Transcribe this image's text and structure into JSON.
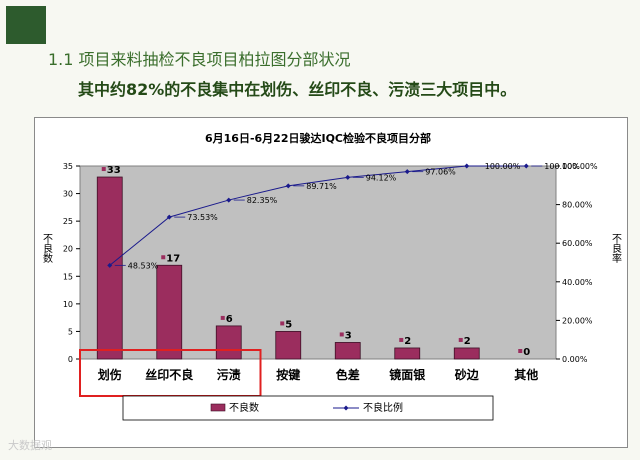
{
  "slide": {
    "heading": "1.1 项目来料抽检不良项目柏拉图分部状况",
    "subheading": "其中约82%的不良集中在划伤、丝印不良、污渍三大项目中。",
    "watermark": "大数据观"
  },
  "colors": {
    "background": "#f7f8f2",
    "accent_dark_green": "#2d5b2d",
    "heading_green": "#3a6e2c",
    "bar_fill": "#9b2d5e",
    "bar_stroke": "#3d0f26",
    "line_color": "#1a1a8c",
    "plot_area": "#c0c0c0",
    "highlight_box": "#e02020"
  },
  "chart_data": {
    "type": "bar",
    "title": "6月16日-6月22日骏达IQC检验不良项目分部",
    "categories": [
      "划伤",
      "丝印不良",
      "污渍",
      "按键",
      "色差",
      "镜面银",
      "砂边",
      "其他"
    ],
    "series": [
      {
        "name": "不良数",
        "type": "bar",
        "axis": "left",
        "values": [
          33,
          17,
          6,
          5,
          3,
          2,
          2,
          0
        ]
      },
      {
        "name": "不良比例",
        "type": "line",
        "axis": "right",
        "values": [
          48.53,
          73.53,
          82.35,
          89.71,
          94.12,
          97.06,
          100.0,
          100.0
        ]
      }
    ],
    "bar_labels": [
      "33",
      "17",
      "6",
      "5",
      "3",
      "2",
      "2",
      "0"
    ],
    "line_labels": [
      "48.53%",
      "73.53%",
      "82.35%",
      "89.71%",
      "94.12%",
      "97.06%",
      "100.00%",
      "100.00%"
    ],
    "ylabel_left": "不良数",
    "ylabel_right": "不良率",
    "ylim_left": [
      0,
      35
    ],
    "yticks_left": [
      "0",
      "5",
      "10",
      "15",
      "20",
      "25",
      "30",
      "35"
    ],
    "ylim_right": [
      0,
      100
    ],
    "yticks_right": [
      "0.00%",
      "20.00%",
      "40.00%",
      "60.00%",
      "80.00%",
      "100.00%"
    ],
    "grid": false,
    "legend": [
      "不良数",
      "不良比例"
    ],
    "legend_position": "bottom",
    "highlighted_categories": [
      "划伤",
      "丝印不良",
      "污渍"
    ]
  }
}
